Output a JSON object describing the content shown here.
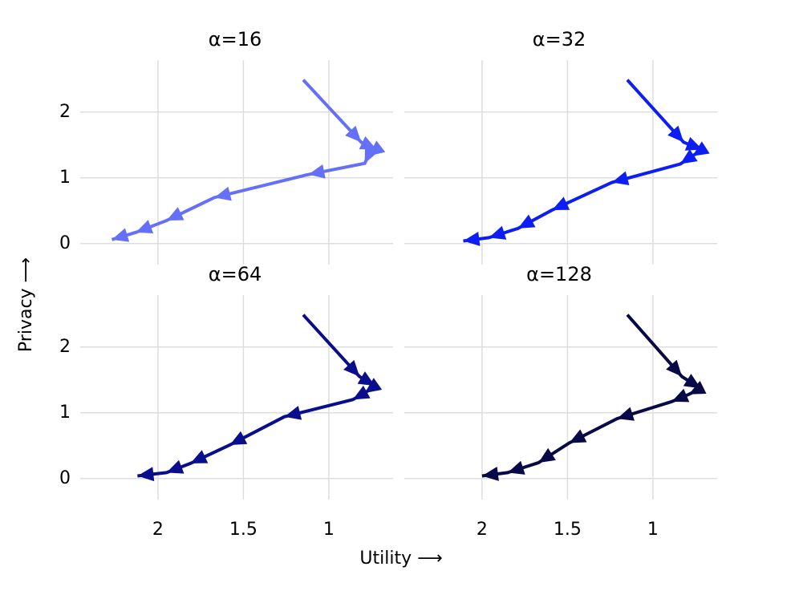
{
  "xlabel": "Utility ⟶",
  "ylabel": "Privacy ⟶",
  "chart_data": [
    {
      "type": "line",
      "arrows": true,
      "title": "α=16",
      "grid": true,
      "xlim": [
        2.455,
        0.624
      ],
      "ylim": [
        -0.32,
        2.79
      ],
      "xticks": [
        2,
        1.5,
        1
      ],
      "yticks": [
        0,
        1,
        2
      ],
      "series": [
        {
          "color": "#6470f7",
          "x": [
            1.15,
            0.81,
            0.72,
            0.77,
            0.79,
            1.12,
            1.67,
            1.95,
            2.13,
            2.27
          ],
          "values": [
            2.49,
            1.54,
            1.43,
            1.33,
            1.22,
            1.05,
            0.7,
            0.35,
            0.17,
            0.06
          ]
        }
      ]
    },
    {
      "type": "line",
      "arrows": true,
      "title": "α=32",
      "grid": true,
      "xlim": [
        2.455,
        0.624
      ],
      "ylim": [
        -0.32,
        2.79
      ],
      "xticks": [
        2,
        1.5,
        1
      ],
      "yticks": [
        0,
        1,
        2
      ],
      "series": [
        {
          "color": "#0d1ef5",
          "x": [
            1.15,
            0.82,
            0.71,
            0.77,
            0.84,
            1.24,
            1.59,
            1.79,
            1.96,
            2.11
          ],
          "values": [
            2.49,
            1.54,
            1.43,
            1.33,
            1.21,
            0.93,
            0.51,
            0.23,
            0.09,
            0.04
          ]
        }
      ]
    },
    {
      "type": "line",
      "arrows": true,
      "title": "α=64",
      "grid": true,
      "xlim": [
        2.455,
        0.624
      ],
      "ylim": [
        -0.32,
        2.79
      ],
      "xticks": [
        2,
        1.5,
        1
      ],
      "yticks": [
        0,
        1,
        2
      ],
      "series": [
        {
          "color": "#0a0e8c",
          "x": [
            1.15,
            0.82,
            0.73,
            0.79,
            0.86,
            1.26,
            1.58,
            1.81,
            1.95,
            2.12
          ],
          "values": [
            2.49,
            1.55,
            1.41,
            1.3,
            1.2,
            0.94,
            0.51,
            0.23,
            0.09,
            0.04
          ]
        }
      ]
    },
    {
      "type": "line",
      "arrows": true,
      "title": "α=128",
      "grid": true,
      "xlim": [
        2.455,
        0.624
      ],
      "ylim": [
        -0.32,
        2.79
      ],
      "xticks": [
        2,
        1.5,
        1
      ],
      "yticks": [
        0,
        1,
        2
      ],
      "series": [
        {
          "color": "#080a48",
          "x": [
            1.15,
            0.83,
            0.72,
            0.79,
            0.89,
            1.21,
            1.49,
            1.67,
            1.85,
            2.0
          ],
          "values": [
            2.49,
            1.55,
            1.37,
            1.28,
            1.17,
            0.91,
            0.54,
            0.24,
            0.09,
            0.04
          ]
        }
      ]
    }
  ]
}
